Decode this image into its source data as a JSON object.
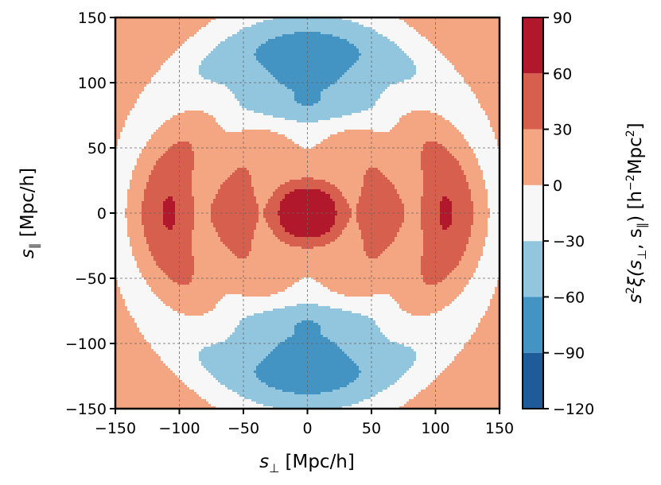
{
  "chart_data": {
    "type": "contour",
    "title": "",
    "xlabel": "s⊥ [Mpc/h]",
    "ylabel": "s∥ [Mpc/h]",
    "colorbar_label": "s²ξ(s⊥, s∥) [h⁻²Mpc²]",
    "xlim": [
      -150,
      150
    ],
    "ylim": [
      -150,
      150
    ],
    "xticks": [
      -150,
      -100,
      -50,
      0,
      50,
      100,
      150
    ],
    "yticks": [
      -150,
      -100,
      -50,
      0,
      50,
      100,
      150
    ],
    "xtick_labels": [
      "−150",
      "−100",
      "−50",
      "0",
      "50",
      "100",
      "150"
    ],
    "ytick_labels": [
      "−150",
      "−100",
      "−50",
      "0",
      "50",
      "100",
      "150"
    ],
    "grid": true,
    "levels": [
      -120,
      -90,
      -60,
      -30,
      0,
      30,
      60,
      90
    ],
    "level_labels": [
      "−120",
      "−90",
      "−60",
      "−30",
      "0",
      "30",
      "60",
      "90"
    ],
    "colors": [
      "#1f5a99",
      "#4393c3",
      "#92c5de",
      "#f7f7f7",
      "#f4a582",
      "#d6604d",
      "#b2182b"
    ],
    "colormap": "RdBu_r"
  },
  "labels": {
    "x_symbol": "s",
    "x_sub": "⊥",
    "x_units": "[Mpc/h]",
    "y_symbol": "s",
    "y_sub": "∥",
    "y_units": "[Mpc/h]",
    "cb_part1": "s",
    "cb_sup2": "2",
    "cb_part2": "ξ(s",
    "cb_sub_perp": "⊥",
    "cb_part3": ", s",
    "cb_sub_par": "∥",
    "cb_part4": ") [h",
    "cb_sup_neg2": "−2",
    "cb_part5": "Mpc",
    "cb_part6": "]"
  }
}
